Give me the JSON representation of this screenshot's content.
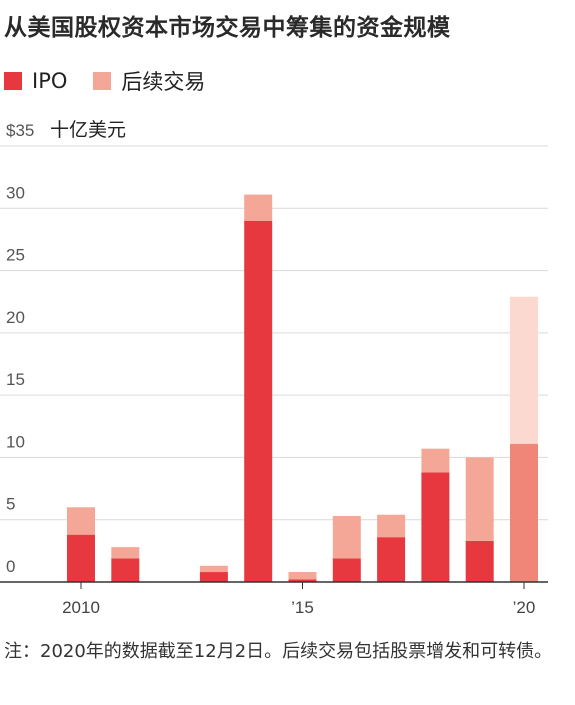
{
  "title": "从美国股权资本市场交易中筹集的资金规模",
  "legend": [
    {
      "label": "IPO",
      "color": "#e8383f"
    },
    {
      "label": "后续交易",
      "color": "#f4a797"
    }
  ],
  "footnote": "注：2020年的数据截至12月2日。后续交易包括股票增发和可转债。",
  "chart_data": {
    "type": "bar",
    "stacked": true,
    "unit_label": "十亿美元",
    "y_tick_labels": [
      "0",
      "5",
      "10",
      "15",
      "20",
      "25",
      "30",
      "$35"
    ],
    "y_ticks": [
      0,
      5,
      10,
      15,
      20,
      25,
      30,
      35
    ],
    "ylim": [
      0,
      35
    ],
    "grid": true,
    "categories": [
      "2010",
      "2011",
      "2012",
      "2013",
      "2014",
      "2015",
      "2016",
      "2017",
      "2018",
      "2019",
      "2020"
    ],
    "x_tick_labels": [
      {
        "category": "2010",
        "label": "2010"
      },
      {
        "category": "2015",
        "label": "’15"
      },
      {
        "category": "2020",
        "label": "’20"
      }
    ],
    "series": [
      {
        "name": "IPO",
        "color": "#e8383f",
        "color_partial": "#f08678",
        "values": [
          3.8,
          1.9,
          0,
          0.8,
          29.0,
          0.2,
          1.9,
          3.6,
          8.8,
          3.3,
          11.1
        ]
      },
      {
        "name": "后续交易",
        "color": "#f4a797",
        "color_partial": "#fbd9d1",
        "values": [
          2.2,
          0.9,
          0,
          0.5,
          2.1,
          0.6,
          3.4,
          1.8,
          1.9,
          6.7,
          11.8
        ]
      }
    ],
    "partial_year": "2020"
  }
}
